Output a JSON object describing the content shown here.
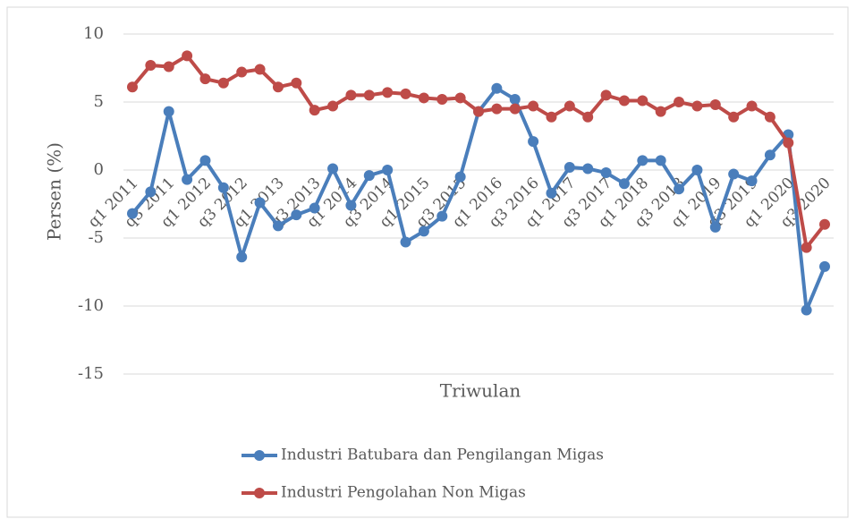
{
  "chart_data": {
    "type": "line",
    "x_label": "Triwulan",
    "y_label": "Persen (%)",
    "categories": [
      "q1 2011",
      null,
      "q3 2011",
      null,
      "q1 2012",
      null,
      "q3 2012",
      null,
      "q1 2013",
      null,
      "q3 2013",
      null,
      "q1 2014",
      null,
      "q3 2014",
      null,
      "q1 2015",
      null,
      "q3 2015",
      null,
      "q1 2016",
      null,
      "q3 2016",
      null,
      "q1 2017",
      null,
      "q3 2017",
      null,
      "q1 2018",
      null,
      "q3 2018",
      null,
      "q1 2019",
      null,
      "q3 2019",
      null,
      "q1 2020",
      null,
      "q3 2020"
    ],
    "series": [
      {
        "name": "Industri Batubara dan Pengilangan Migas",
        "color": "#4a7ebb",
        "values": [
          -3.2,
          -1.6,
          4.3,
          -0.7,
          0.7,
          -1.3,
          -6.4,
          -2.4,
          -4.1,
          -3.3,
          -2.8,
          0.1,
          -2.6,
          -0.4,
          0,
          -5.3,
          -4.5,
          -3.4,
          -0.5,
          4.3,
          6.0,
          5.2,
          2.1,
          -1.7,
          0.2,
          0.1,
          -0.2,
          -1.0,
          0.7,
          0.7,
          -1.4,
          0,
          -4.2,
          -0.3,
          -0.8,
          1.1,
          2.6,
          -10.3,
          -7.1
        ]
      },
      {
        "name": "Industri Pengolahan Non Migas",
        "color": "#be4b48",
        "values": [
          6.1,
          7.7,
          7.6,
          8.4,
          6.7,
          6.4,
          7.2,
          7.4,
          6.1,
          6.4,
          4.4,
          4.7,
          5.5,
          5.5,
          5.7,
          5.6,
          5.3,
          5.2,
          5.3,
          4.3,
          4.5,
          4.5,
          4.7,
          3.9,
          4.7,
          3.9,
          5.5,
          5.1,
          5.1,
          4.3,
          5.0,
          4.7,
          4.8,
          3.9,
          4.7,
          3.9,
          2.0,
          -5.7,
          -4.0
        ]
      }
    ],
    "ylim": [
      -15,
      10
    ],
    "yticks": [
      -15,
      -10,
      -5,
      0,
      5,
      10
    ],
    "grid": true,
    "legend": "bottom"
  }
}
